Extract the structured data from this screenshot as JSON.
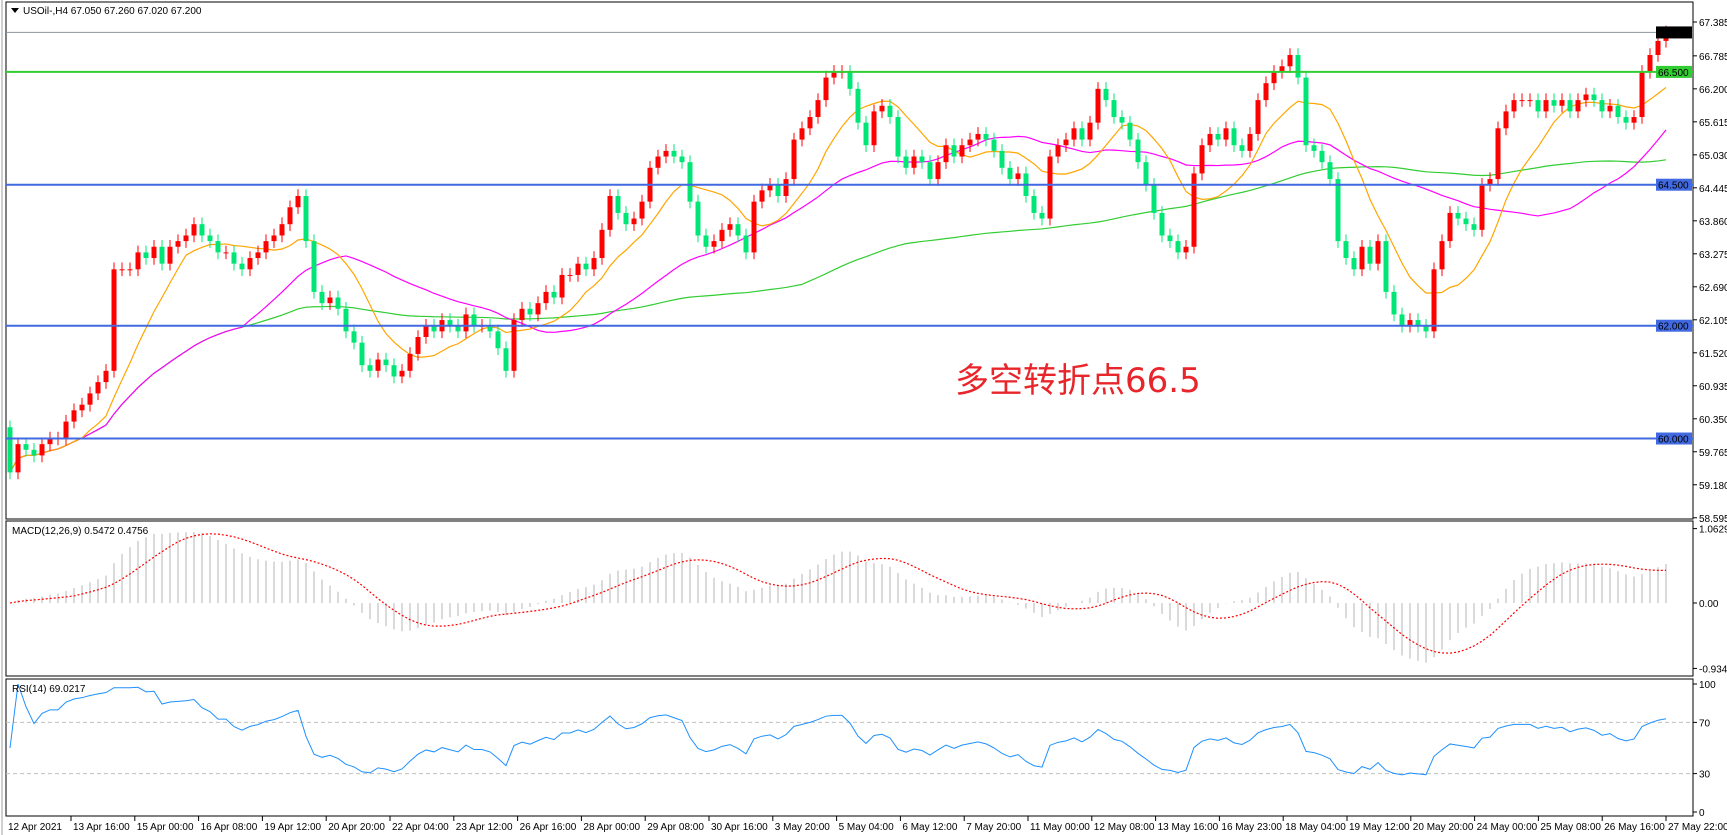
{
  "chart_data": {
    "type": "candlestick",
    "symbol_header": "USOil-,H4  67.050 67.260 67.020 67.200",
    "ohlc_last": {
      "open": 67.05,
      "high": 67.26,
      "low": 67.02,
      "close": 67.2
    },
    "colors": {
      "bull": "#ff0000",
      "bear": "#00e676",
      "ma_fast": "#ffa500",
      "ma_mid": "#ff00ff",
      "ma_slow": "#32cd32",
      "macd_hist": "#c0c0c0",
      "macd_signal": "#ff0000",
      "rsi": "#1e90ff"
    },
    "first_open": 60.2,
    "close": [
      59.4,
      59.9,
      59.8,
      59.7,
      59.9,
      60.0,
      60.0,
      60.3,
      60.5,
      60.6,
      60.8,
      61.0,
      61.2,
      63.0,
      63.0,
      63.0,
      63.3,
      63.2,
      63.4,
      63.1,
      63.4,
      63.5,
      63.6,
      63.8,
      63.6,
      63.5,
      63.3,
      63.3,
      63.1,
      63.0,
      63.2,
      63.3,
      63.5,
      63.6,
      63.8,
      64.1,
      64.3,
      63.5,
      62.6,
      62.4,
      62.5,
      62.3,
      61.9,
      61.7,
      61.3,
      61.2,
      61.4,
      61.3,
      61.1,
      61.2,
      61.5,
      61.8,
      62.0,
      61.9,
      62.1,
      62.0,
      61.9,
      62.2,
      62.0,
      62.0,
      61.9,
      61.6,
      61.2,
      62.1,
      62.3,
      62.2,
      62.4,
      62.6,
      62.5,
      62.9,
      62.9,
      63.1,
      63.0,
      63.2,
      63.7,
      64.3,
      64.0,
      63.8,
      63.9,
      64.2,
      64.8,
      65.0,
      65.1,
      65.0,
      64.9,
      64.2,
      63.6,
      63.4,
      63.5,
      63.7,
      63.8,
      63.6,
      63.3,
      64.2,
      64.4,
      64.5,
      64.3,
      64.6,
      65.3,
      65.5,
      65.7,
      66.0,
      66.4,
      66.5,
      66.5,
      66.2,
      65.6,
      65.2,
      65.8,
      65.9,
      65.7,
      65.0,
      64.8,
      65.0,
      64.9,
      64.6,
      64.9,
      65.2,
      65.0,
      65.2,
      65.3,
      65.4,
      65.3,
      65.1,
      64.8,
      64.6,
      64.7,
      64.3,
      64.0,
      63.9,
      65.0,
      65.2,
      65.3,
      65.5,
      65.3,
      65.6,
      66.2,
      66.0,
      65.7,
      65.6,
      65.3,
      64.9,
      64.5,
      64.0,
      63.6,
      63.5,
      63.3,
      63.4,
      64.7,
      65.2,
      65.4,
      65.3,
      65.5,
      65.2,
      65.1,
      65.4,
      66.0,
      66.3,
      66.5,
      66.6,
      66.8,
      66.4,
      65.2,
      65.1,
      64.9,
      64.6,
      63.5,
      63.2,
      63.0,
      63.4,
      63.1,
      63.5,
      62.6,
      62.2,
      62.0,
      62.1,
      62.0,
      61.9,
      63.0,
      63.5,
      64.0,
      63.9,
      63.8,
      63.7,
      64.5,
      64.6,
      65.5,
      65.8,
      66.0,
      66.0,
      66.0,
      65.8,
      66.0,
      65.9,
      66.0,
      65.8,
      66.0,
      66.1,
      66.0,
      65.8,
      65.9,
      65.7,
      65.6,
      65.7,
      66.5,
      66.8,
      67.05,
      67.2
    ],
    "price_axis": {
      "range": [
        58.595,
        67.385
      ],
      "ticks": [
        "67.385",
        "66.785",
        "66.200",
        "65.615",
        "65.030",
        "64.445",
        "63.860",
        "63.275",
        "62.690",
        "62.105",
        "61.520",
        "60.935",
        "60.350",
        "59.765",
        "59.180",
        "58.595"
      ]
    },
    "horizontal_levels": [
      {
        "price": 67.2,
        "label": "67.200",
        "color": "#8c96a0",
        "label_bg": "#000000"
      },
      {
        "price": 66.5,
        "label": "66.500",
        "color": "#32cd32",
        "label_bg": "#32cd32"
      },
      {
        "price": 64.5,
        "label": "64.500",
        "color": "#4169e1",
        "label_bg": "#4169e1"
      },
      {
        "price": 62.0,
        "label": "62.000",
        "color": "#4169e1",
        "label_bg": "#4169e1"
      },
      {
        "price": 60.0,
        "label": "60.000",
        "color": "#4169e1",
        "label_bg": "#4169e1"
      }
    ],
    "annotation": "多空转折点66.5",
    "time_axis": [
      "12 Apr 2021",
      "13 Apr 16:00",
      "15 Apr 00:00",
      "16 Apr 08:00",
      "19 Apr 12:00",
      "20 Apr 20:00",
      "22 Apr 04:00",
      "23 Apr 12:00",
      "26 Apr 16:00",
      "28 Apr 00:00",
      "29 Apr 08:00",
      "30 Apr 16:00",
      "3 May 20:00",
      "5 May 04:00",
      "6 May 12:00",
      "7 May 20:00",
      "11 May 00:00",
      "12 May 08:00",
      "13 May 16:00",
      "16 May 23:00",
      "18 May 04:00",
      "19 May 12:00",
      "20 May 20:00",
      "24 May 00:00",
      "25 May 08:00",
      "26 May 16:00",
      "27 May 22:00"
    ],
    "macd": {
      "label": "MACD(12,26,9) 0.5472 0.4756",
      "range": [
        -0.9347,
        1.0629
      ],
      "ticks": [
        "1.0629",
        "0.00",
        "-0.9347"
      ]
    },
    "rsi": {
      "label": "RSI(14) 69.0217",
      "range": [
        0,
        100
      ],
      "levels": [
        70,
        30
      ],
      "ticks": [
        "100",
        "70",
        "30",
        "0"
      ]
    }
  }
}
